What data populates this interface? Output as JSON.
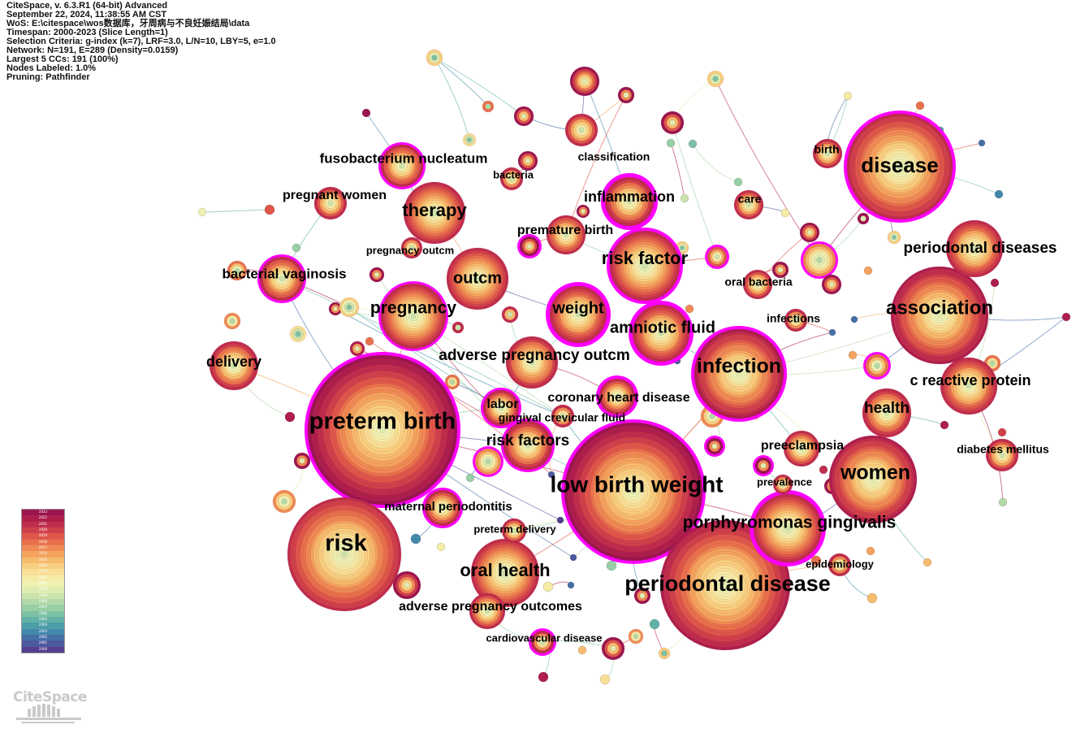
{
  "meta_lines": [
    "CiteSpace, v. 6.3.R1 (64-bit) Advanced",
    "September 22, 2024, 11:38:55 AM CST",
    "WoS: E:\\citespace\\wos数据库，牙周病与不良妊娠结局\\data",
    "Timespan: 2000-2023 (Slice Length=1)",
    "Selection Criteria: g-index (k=7), LRF=3.0, L/N=10, LBY=5, e=1.0",
    "Network: N=191, E=289 (Density=0.0159)",
    "Largest 5 CCs: 191 (100%)",
    "Nodes Labeled: 1.0%",
    "Pruning: Pathfinder"
  ],
  "logo_text": "CiteSpace",
  "legend": {
    "years": [
      "2023",
      "2022",
      "2021",
      "2020",
      "2019",
      "2018",
      "2017",
      "2016",
      "2015",
      "2014",
      "2013",
      "2012",
      "2011",
      "2010",
      "2009",
      "2008",
      "2007",
      "2006",
      "2005",
      "2004",
      "2003",
      "2002",
      "2001",
      "2000"
    ],
    "colors": [
      "#9b1550",
      "#ae1f4d",
      "#c02d4c",
      "#d0404b",
      "#de574a",
      "#e8714c",
      "#ef8a54",
      "#f4a35e",
      "#f7bb6d",
      "#f8cf80",
      "#f8df95",
      "#f5eba7",
      "#eef1b2",
      "#e0ecb0",
      "#cbe3ab",
      "#b2d9a8",
      "#98cea6",
      "#7cc1a5",
      "#62b1a6",
      "#4d9ea8",
      "#4388aa",
      "#466fa7",
      "#4d589f",
      "#553f8f"
    ]
  },
  "nodes": [
    {
      "label": "preterm birth",
      "size": 30,
      "year": 0
    },
    {
      "label": "low birth weight",
      "size": 27,
      "year": 0
    },
    {
      "label": "periodontal disease",
      "size": 27,
      "year": 1
    },
    {
      "label": "risk",
      "size": 27,
      "year": 2
    },
    {
      "label": "disease",
      "size": 25,
      "year": 2
    },
    {
      "label": "association",
      "size": 24,
      "year": 1
    },
    {
      "label": "women",
      "size": 23,
      "year": 1
    },
    {
      "label": "infection",
      "size": 24,
      "year": 1
    },
    {
      "label": "therapy",
      "size": 21,
      "year": 2
    },
    {
      "label": "risk factor",
      "size": 21,
      "year": 2
    },
    {
      "label": "pregnancy",
      "size": 21,
      "year": 2
    },
    {
      "label": "oral health",
      "size": 21,
      "year": 2
    },
    {
      "label": "porphyromonas gingivalis",
      "size": 20,
      "year": 2
    },
    {
      "label": "outcm",
      "size": 20,
      "year": 2
    },
    {
      "label": "weight",
      "size": 19,
      "year": 2
    },
    {
      "label": "amniotic fluid",
      "size": 18,
      "year": 2
    },
    {
      "label": "adverse pregnancy outcm",
      "size": 18,
      "year": 2
    },
    {
      "label": "risk factors",
      "size": 18,
      "year": 2
    },
    {
      "label": "fusobacterium nucleatum",
      "size": 16,
      "year": 2
    },
    {
      "label": "inflammation",
      "size": 16,
      "year": 2
    },
    {
      "label": "bacterial vaginosis",
      "size": 16,
      "year": 2
    },
    {
      "label": "periodontal diseases",
      "size": 16,
      "year": 2
    },
    {
      "label": "c reactive protein",
      "size": 16,
      "year": 2
    },
    {
      "label": "health",
      "size": 16,
      "year": 2
    },
    {
      "label": "delivery",
      "size": 16,
      "year": 2
    },
    {
      "label": "premature birth",
      "size": 14,
      "year": 2
    },
    {
      "label": "maternal periodontitis",
      "size": 14,
      "year": 2
    },
    {
      "label": "coronary heart disease",
      "size": 14,
      "year": 2
    },
    {
      "label": "labor",
      "size": 14,
      "year": 2
    },
    {
      "label": "adverse pregnancy outcomes",
      "size": 14,
      "year": 2
    },
    {
      "label": "preeclampsia",
      "size": 14,
      "year": 2
    },
    {
      "label": "pregnant women",
      "size": 14,
      "year": 2
    },
    {
      "label": "gingival crevicular fluid",
      "size": 13,
      "year": 2
    },
    {
      "label": "diabetes mellitus",
      "size": 13,
      "year": 2
    },
    {
      "label": "classification",
      "size": 13,
      "year": 2
    },
    {
      "label": "pregnancy outcm",
      "size": 13,
      "year": 2
    },
    {
      "label": "preterm delivery",
      "size": 13,
      "year": 2
    },
    {
      "label": "cardiovascular disease",
      "size": 13,
      "year": 2
    },
    {
      "label": "oral bacteria",
      "size": 13,
      "year": 2
    },
    {
      "label": "infections",
      "size": 13,
      "year": 2
    },
    {
      "label": "prevalence",
      "size": 13,
      "year": 2
    },
    {
      "label": "epidemiology",
      "size": 13,
      "year": 2
    },
    {
      "label": "birth",
      "size": 13,
      "year": 2
    },
    {
      "label": "care",
      "size": 13,
      "year": 2
    },
    {
      "label": "bacteria",
      "size": 13,
      "year": 2
    }
  ]
}
